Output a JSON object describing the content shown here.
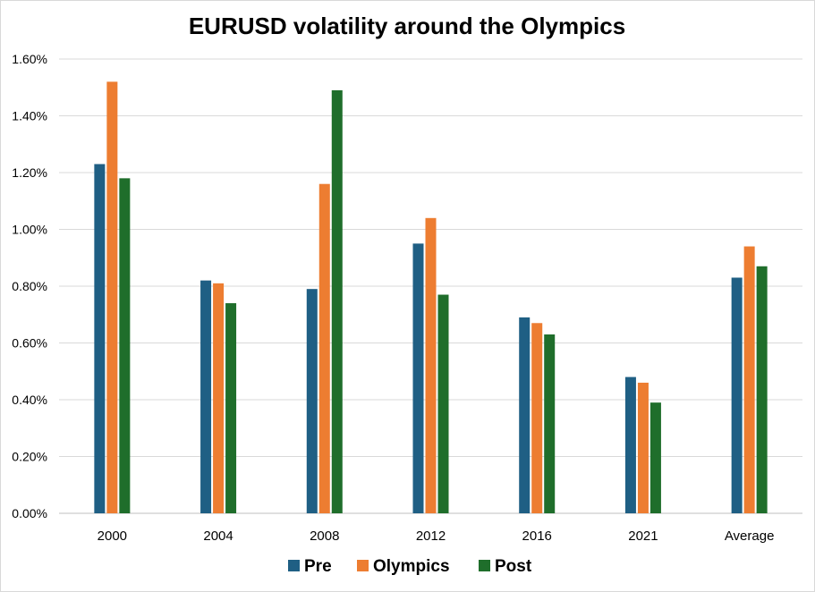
{
  "chart_data": {
    "type": "bar",
    "title": "EURUSD volatility around the Olympics",
    "xlabel": "",
    "ylabel": "",
    "categories": [
      "2000",
      "2004",
      "2008",
      "2012",
      "2016",
      "2021",
      "Average"
    ],
    "series": [
      {
        "name": "Pre",
        "color": "#1f5f84",
        "values": [
          1.23,
          0.82,
          0.79,
          0.95,
          0.69,
          0.48,
          0.83
        ]
      },
      {
        "name": "Olympics",
        "color": "#ed7d31",
        "values": [
          1.52,
          0.81,
          1.16,
          1.04,
          0.67,
          0.46,
          0.94
        ]
      },
      {
        "name": "Post",
        "color": "#1f6e2b",
        "values": [
          1.18,
          0.74,
          1.49,
          0.77,
          0.63,
          0.39,
          0.87
        ]
      }
    ],
    "ylim": [
      0,
      1.6
    ],
    "yticks": [
      0,
      0.2,
      0.4,
      0.6,
      0.8,
      1.0,
      1.2,
      1.4,
      1.6
    ],
    "ytick_labels": [
      "0.00%",
      "0.20%",
      "0.40%",
      "0.60%",
      "0.80%",
      "1.00%",
      "1.20%",
      "1.40%",
      "1.60%"
    ],
    "grid": true,
    "legend_position": "bottom"
  }
}
